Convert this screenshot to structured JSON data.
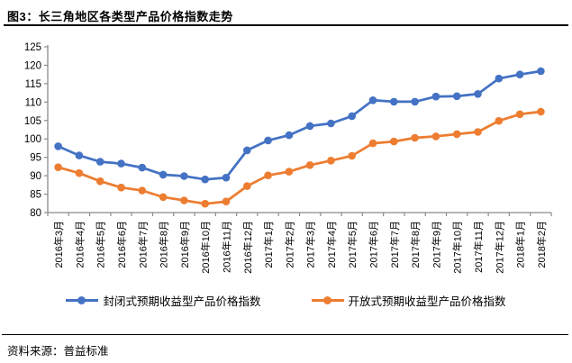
{
  "header": {
    "title": "图3：长三角地区各类型产品价格指数走势"
  },
  "footer": {
    "source": "资料来源：普益标准"
  },
  "chart_data": {
    "type": "line",
    "title": "长三角地区各类型产品价格指数走势",
    "xlabel": "",
    "ylabel": "",
    "ylim": [
      80,
      125
    ],
    "ytick_step": 5,
    "grid": false,
    "legend_position": "bottom",
    "axis_color": "#8c8c8c",
    "tick_label_color": "#000000",
    "categories": [
      "2016年3月",
      "2016年4月",
      "2016年5月",
      "2016年6月",
      "2016年7月",
      "2016年8月",
      "2016年9月",
      "2016年10月",
      "2016年11月",
      "2016年12月",
      "2017年1月",
      "2017年2月",
      "2017年3月",
      "2017年4月",
      "2017年5月",
      "2017年6月",
      "2017年7月",
      "2017年8月",
      "2017年9月",
      "2017年10月",
      "2017年11月",
      "2017年12月",
      "2018年1月",
      "2018年2月"
    ],
    "series": [
      {
        "name": "封闭式预期收益型产品价格指数",
        "color": "#4472C4",
        "marker": "circle",
        "values": [
          98.0,
          95.5,
          93.8,
          93.3,
          92.2,
          90.3,
          89.9,
          89.0,
          89.5,
          96.9,
          99.6,
          101.0,
          103.5,
          104.2,
          106.2,
          110.5,
          110.1,
          110.1,
          111.5,
          111.6,
          112.2,
          116.4,
          117.5,
          118.4
        ]
      },
      {
        "name": "开放式预期收益型产品价格指数",
        "color": "#ED7D31",
        "marker": "circle",
        "values": [
          92.3,
          90.7,
          88.5,
          86.8,
          86.0,
          84.2,
          83.3,
          82.4,
          83.0,
          87.2,
          90.1,
          91.1,
          92.9,
          94.1,
          95.4,
          98.8,
          99.3,
          100.3,
          100.7,
          101.3,
          101.9,
          104.9,
          106.7,
          107.4
        ]
      }
    ]
  }
}
